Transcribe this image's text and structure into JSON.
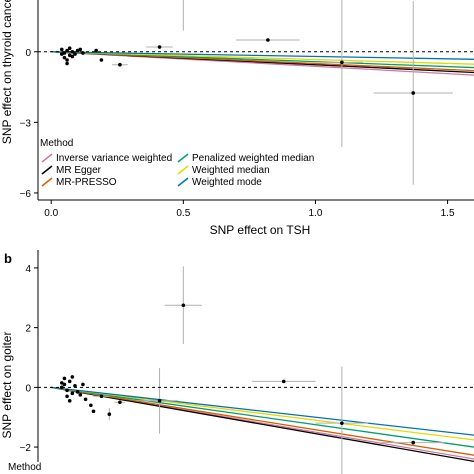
{
  "chart_data": [
    {
      "panel": "",
      "type": "scatter",
      "xlabel": "SNP effect on TSH",
      "ylabel": "SNP effect on thyroid cancer",
      "xlim": [
        -0.05,
        1.6
      ],
      "ylim": [
        -6.3,
        2.2
      ],
      "xticks": [
        0.0,
        0.5,
        1.0,
        1.5
      ],
      "xtick_labels": [
        "0.0",
        "0.5",
        "1.0",
        "1.5"
      ],
      "yticks": [
        0,
        -3,
        -6
      ],
      "ytick_labels": [
        "0",
        "−3",
        "−6"
      ],
      "zero_line": "dashed",
      "grid": false,
      "points": [
        {
          "x": 0.41,
          "y": 0.2,
          "xerr": 0.05,
          "yerr": 0
        },
        {
          "x": 0.82,
          "y": 0.5,
          "xerr": 0.12,
          "yerr": 0
        },
        {
          "x": 1.1,
          "y": -0.45,
          "xerr": 0.08,
          "yerr": 3.6
        },
        {
          "x": 1.37,
          "y": -1.75,
          "xerr": 0.15,
          "yerr": 3.9
        },
        {
          "x": 0.26,
          "y": -0.55,
          "xerr": 0.03,
          "yerr": 0
        },
        {
          "x": 0.05,
          "y": -0.05
        },
        {
          "x": 0.06,
          "y": 0.05
        },
        {
          "x": 0.07,
          "y": -0.15
        },
        {
          "x": 0.04,
          "y": 0.1
        },
        {
          "x": 0.08,
          "y": 0.0
        },
        {
          "x": 0.05,
          "y": -0.25
        },
        {
          "x": 0.09,
          "y": -0.1
        },
        {
          "x": 0.06,
          "y": -0.35
        },
        {
          "x": 0.1,
          "y": 0.05
        },
        {
          "x": 0.07,
          "y": 0.15
        },
        {
          "x": 0.12,
          "y": -0.05
        },
        {
          "x": 0.04,
          "y": -0.1
        },
        {
          "x": 0.11,
          "y": 0.1
        },
        {
          "x": 0.17,
          "y": 0.05
        },
        {
          "x": 0.19,
          "y": -0.35
        },
        {
          "x": 0.06,
          "y": -0.5
        },
        {
          "x": 0.08,
          "y": -0.2
        }
      ],
      "vertical_errorbars": [
        {
          "x": 0.5,
          "y_from": 0.9,
          "y_to": 2.2
        }
      ],
      "series": [
        {
          "name": "Inverse variance weighted",
          "color": "#cc79a7",
          "slope": -0.62
        },
        {
          "name": "MR Egger",
          "color": "#000000",
          "slope": -0.55
        },
        {
          "name": "MR-PRESSO",
          "color": "#d55e00",
          "slope": -0.5
        },
        {
          "name": "Penalized weighted median",
          "color": "#009e73",
          "slope": -0.42
        },
        {
          "name": "Weighted median",
          "color": "#e6d800",
          "slope": -0.33
        },
        {
          "name": "Weighted mode",
          "color": "#0072b2",
          "slope": -0.2
        }
      ],
      "legend": {
        "title": "Method",
        "placement": "bottom-left"
      }
    },
    {
      "panel": "b",
      "type": "scatter",
      "xlabel": "",
      "ylabel": "SNP effect on goiter",
      "xlim": [
        -0.05,
        1.6
      ],
      "ylim": [
        -2.5,
        4.6
      ],
      "yticks": [
        4,
        2,
        0,
        -2
      ],
      "ytick_labels": [
        "4",
        "2",
        "0",
        "−2"
      ],
      "zero_line": "dashed",
      "grid": false,
      "points": [
        {
          "x": 0.5,
          "y": 2.75,
          "xerr": 0.07,
          "yerr": 1.3
        },
        {
          "x": 0.88,
          "y": 0.2,
          "xerr": 0.12,
          "yerr": 0
        },
        {
          "x": 1.1,
          "y": -1.2,
          "xerr": 0.1,
          "yerr": 1.9
        },
        {
          "x": 1.37,
          "y": -1.85,
          "xerr": 0.12,
          "yerr": 0
        },
        {
          "x": 0.41,
          "y": -0.45,
          "xerr": 0.07,
          "yerr": 1.1
        },
        {
          "x": 0.26,
          "y": -0.5,
          "xerr": 0.02,
          "yerr": 0
        },
        {
          "x": 0.19,
          "y": -0.3,
          "xerr": 0.03,
          "yerr": 0
        },
        {
          "x": 0.22,
          "y": -0.9,
          "xerr": 0,
          "yerr": 0.2
        },
        {
          "x": 0.04,
          "y": 0.0
        },
        {
          "x": 0.05,
          "y": 0.1
        },
        {
          "x": 0.06,
          "y": -0.1
        },
        {
          "x": 0.07,
          "y": 0.2
        },
        {
          "x": 0.08,
          "y": -0.2
        },
        {
          "x": 0.05,
          "y": 0.3
        },
        {
          "x": 0.06,
          "y": -0.3
        },
        {
          "x": 0.09,
          "y": 0.05
        },
        {
          "x": 0.1,
          "y": -0.15
        },
        {
          "x": 0.12,
          "y": 0.1
        },
        {
          "x": 0.13,
          "y": -0.4
        },
        {
          "x": 0.15,
          "y": -0.6
        },
        {
          "x": 0.11,
          "y": -0.25
        },
        {
          "x": 0.07,
          "y": -0.45
        },
        {
          "x": 0.04,
          "y": 0.15
        },
        {
          "x": 0.08,
          "y": 0.35
        },
        {
          "x": 0.16,
          "y": -0.8
        }
      ],
      "series": [
        {
          "name": "Inverse variance weighted",
          "color": "#cc79a7",
          "slope": -1.5
        },
        {
          "name": "MR Egger",
          "color": "#000000",
          "slope": -1.55
        },
        {
          "name": "MR-PRESSO",
          "color": "#d55e00",
          "slope": -1.42
        },
        {
          "name": "Penalized weighted median",
          "color": "#009e73",
          "slope": -1.25
        },
        {
          "name": "Weighted median",
          "color": "#e6d800",
          "slope": -1.1
        },
        {
          "name": "Weighted mode",
          "color": "#0072b2",
          "slope": -1.0
        }
      ],
      "legend": {
        "title": "Method",
        "placement": "bottom-left"
      }
    }
  ]
}
